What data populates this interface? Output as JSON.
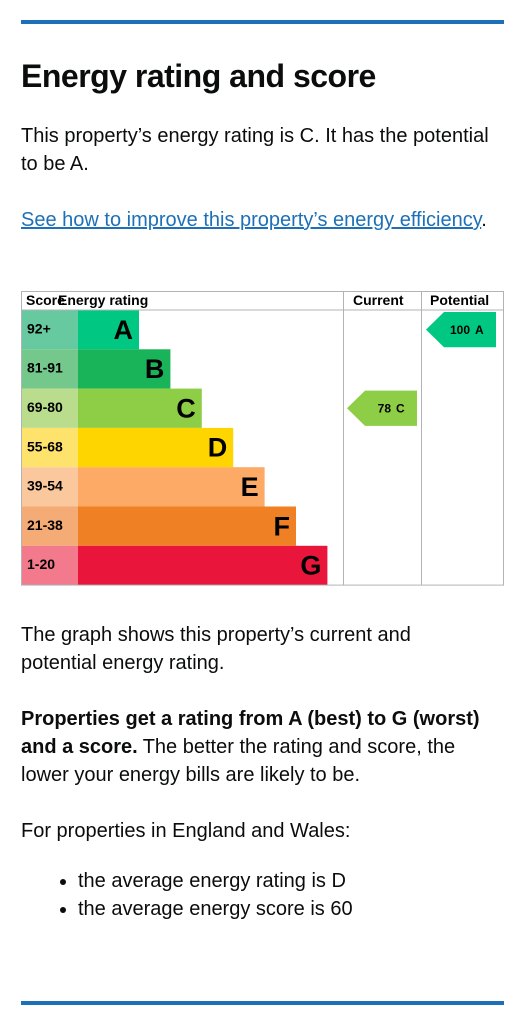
{
  "header": {
    "title": "Energy rating and score"
  },
  "intro": "This property’s energy rating is C. It has the potential to be A.",
  "link": {
    "text": "See how to improve this property’s energy efficiency",
    "suffix": "."
  },
  "chart": {
    "columns": [
      "Score",
      "Energy rating",
      "Current",
      "Potential"
    ],
    "bands": [
      {
        "score": "92+",
        "rating": "A",
        "color": "#00c781",
        "score_color": "#66c9a0"
      },
      {
        "score": "81-91",
        "rating": "B",
        "color": "#19b459",
        "score_color": "#75c88c"
      },
      {
        "score": "69-80",
        "rating": "C",
        "color": "#8dce46",
        "score_color": "#b9dd8c"
      },
      {
        "score": "55-68",
        "rating": "D",
        "color": "#ffd500",
        "score_color": "#fde36b"
      },
      {
        "score": "39-54",
        "rating": "E",
        "color": "#fcaa65",
        "score_color": "#fbc79c"
      },
      {
        "score": "21-38",
        "rating": "F",
        "color": "#ef8023",
        "score_color": "#f4ab76"
      },
      {
        "score": "1-20",
        "rating": "G",
        "color": "#e9153b",
        "score_color": "#f27a8c"
      }
    ],
    "current": {
      "score": 78,
      "rating": "C"
    },
    "potential": {
      "score": 100,
      "rating": "A"
    }
  },
  "graph_note": "The graph shows this property’s current and potential energy rating.",
  "summary": {
    "bold": "Properties get a rating from A (best) to G (worst) and a score.",
    "text": "The better the rating and score, the lower your energy bills are likely to be."
  },
  "england": "For properties in England and Wales:",
  "list": [
    "the average energy rating is D",
    "the average energy score is 60"
  ]
}
